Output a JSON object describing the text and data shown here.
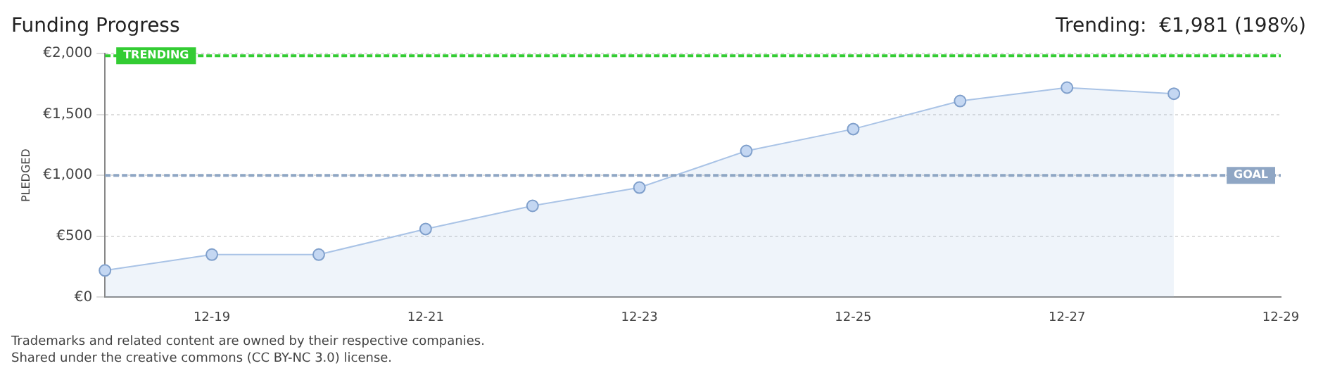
{
  "chart_data": {
    "type": "area",
    "title": "Funding Progress",
    "ylabel": "PLEDGED",
    "categories": [
      null,
      "12-19",
      null,
      "12-21",
      null,
      "12-23",
      null,
      "12-25",
      null,
      "12-27",
      null,
      "12-29"
    ],
    "series": [
      {
        "color": "#a9c3e6",
        "values": [
          220,
          350,
          350,
          560,
          750,
          900,
          1200,
          1380,
          1610,
          1720,
          1670,
          null
        ]
      }
    ],
    "ylim": [
      0,
      2000
    ],
    "yticks": [
      {
        "value": 0,
        "label": "€0"
      },
      {
        "value": 500,
        "label": "€500"
      },
      {
        "value": 1000,
        "label": "€1,000"
      },
      {
        "value": 1500,
        "label": "€1,500"
      },
      {
        "value": 2000,
        "label": "€2,000"
      }
    ],
    "grid": "y",
    "marker": "circle",
    "legend": false,
    "ref_lines": [
      {
        "axis": "y",
        "value": 1981,
        "label": "TRENDING",
        "color": "#33cc33",
        "line_style": "dashed"
      },
      {
        "axis": "y",
        "value": 1000,
        "label": "GOAL",
        "color": "#8fa6c4",
        "line_style": "dashed"
      }
    ],
    "annotations": [
      "Trending:  €1,981 (198%)",
      "Trademarks and related content are owned by their respective companies.",
      "Shared under the creative commons (CC BY-NC 3.0) license."
    ]
  }
}
